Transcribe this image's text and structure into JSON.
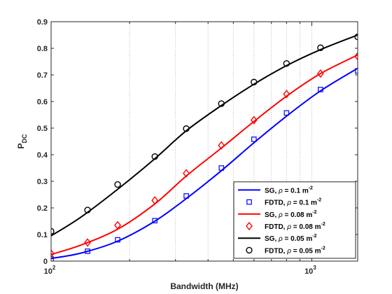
{
  "chart_data": {
    "type": "line",
    "xscale": "log",
    "xlabel": "Bandwidth (MHz)",
    "ylabel_main": "P",
    "ylabel_sub": "DC",
    "xlim": [
      100,
      1500
    ],
    "ylim": [
      0,
      0.9
    ],
    "yticks": [
      "0",
      "0.1",
      "0.2",
      "0.3",
      "0.4",
      "0.5",
      "0.6",
      "0.7",
      "0.8",
      "0.9"
    ],
    "xticks_major": [
      {
        "value": 100,
        "base": "10",
        "exp": "2"
      },
      {
        "value": 1000,
        "base": "10",
        "exp": "3"
      }
    ],
    "x_minor_grid": [
      200,
      300,
      400,
      500,
      600,
      700,
      800,
      900
    ],
    "grid": "vertical-dotted",
    "legend_position": "bottom-right",
    "x_markers": [
      100,
      138,
      180,
      250,
      330,
      450,
      600,
      800,
      1080,
      1500
    ],
    "series": [
      {
        "kind": "line",
        "color": "#0000ff",
        "marker": "none",
        "legend": {
          "prefix": "SG,",
          "rho": "= 0.1 m",
          "sup": "-2"
        },
        "x": [
          100,
          130,
          180,
          250,
          330,
          450,
          600,
          800,
          1080,
          1500
        ],
        "y": [
          0.01,
          0.03,
          0.075,
          0.15,
          0.235,
          0.34,
          0.445,
          0.545,
          0.64,
          0.725
        ]
      },
      {
        "kind": "markers",
        "color": "#0000ff",
        "marker": "square",
        "legend": {
          "prefix": "FDTD,",
          "rho": "= 0.1 m",
          "sup": "-2"
        },
        "x": [
          100,
          138,
          180,
          250,
          330,
          450,
          600,
          800,
          1080,
          1500
        ],
        "y": [
          0.008,
          0.037,
          0.08,
          0.152,
          0.245,
          0.35,
          0.458,
          0.557,
          0.645,
          0.715
        ]
      },
      {
        "kind": "line",
        "color": "#ff0000",
        "marker": "none",
        "legend": {
          "prefix": "SG,",
          "rho": "= 0.08 m",
          "sup": "-2"
        },
        "x": [
          100,
          130,
          180,
          250,
          330,
          450,
          600,
          800,
          1080,
          1500
        ],
        "y": [
          0.025,
          0.06,
          0.12,
          0.215,
          0.32,
          0.425,
          0.525,
          0.62,
          0.705,
          0.775
        ]
      },
      {
        "kind": "markers",
        "color": "#ff0000",
        "marker": "diamond",
        "legend": {
          "prefix": "FDTD,",
          "rho": "= 0.08 m",
          "sup": "-2"
        },
        "x": [
          100,
          138,
          180,
          250,
          330,
          450,
          600,
          800,
          1080,
          1500
        ],
        "y": [
          0.028,
          0.07,
          0.135,
          0.228,
          0.33,
          0.435,
          0.53,
          0.628,
          0.705,
          0.77
        ]
      },
      {
        "kind": "line",
        "color": "#000000",
        "marker": "none",
        "legend": {
          "prefix": "SG,",
          "rho": "= 0.05 m",
          "sup": "-2"
        },
        "x": [
          100,
          130,
          180,
          250,
          330,
          450,
          600,
          800,
          1080,
          1500
        ],
        "y": [
          0.095,
          0.165,
          0.27,
          0.385,
          0.49,
          0.585,
          0.665,
          0.735,
          0.795,
          0.85
        ]
      },
      {
        "kind": "markers",
        "color": "#000000",
        "marker": "circle",
        "legend": {
          "prefix": "FDTD,",
          "rho": "= 0.05 m",
          "sup": "-2"
        },
        "x": [
          100,
          138,
          180,
          250,
          330,
          450,
          600,
          800,
          1080,
          1500
        ],
        "y": [
          0.112,
          0.192,
          0.288,
          0.393,
          0.498,
          0.592,
          0.673,
          0.743,
          0.802,
          0.843
        ]
      }
    ]
  }
}
